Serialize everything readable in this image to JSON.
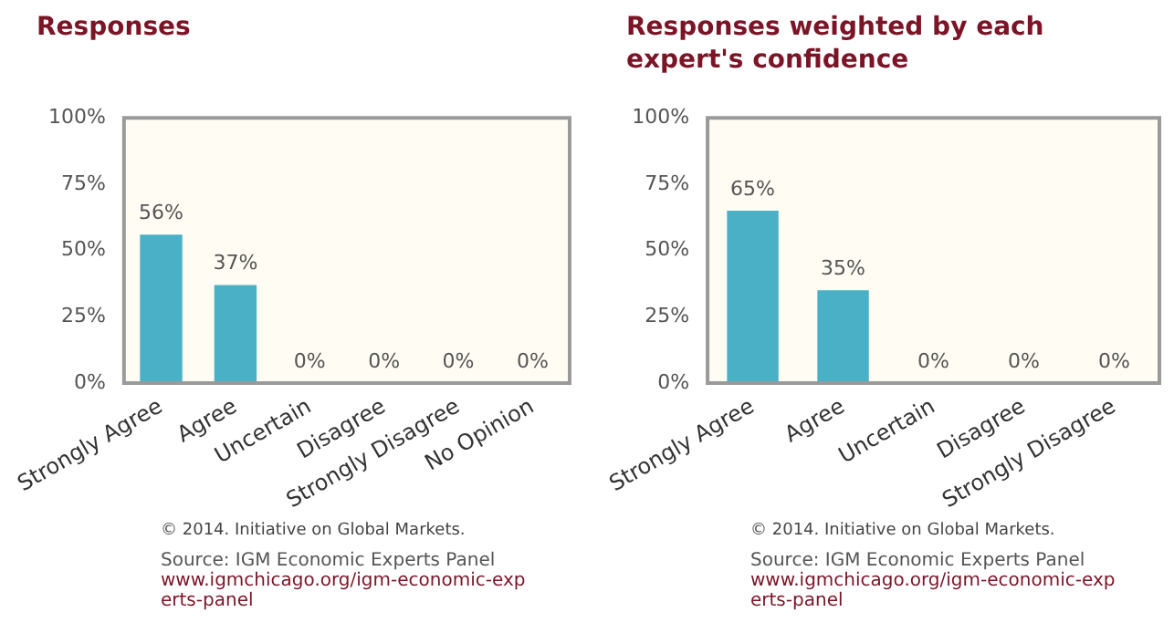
{
  "chart_data": [
    {
      "type": "bar",
      "title": "Responses",
      "categories": [
        "Strongly Agree",
        "Agree",
        "Uncertain",
        "Disagree",
        "Strongly Disagree",
        "No Opinion"
      ],
      "values": [
        56,
        37,
        0,
        0,
        0,
        0
      ],
      "value_labels": [
        "56%",
        "37%",
        "0%",
        "0%",
        "0%",
        "0%"
      ],
      "color": "#4ab0c6",
      "ylim": [
        0,
        100
      ],
      "yticks": [
        {
          "value": 0,
          "label": "0%"
        },
        {
          "value": 25,
          "label": "25%"
        },
        {
          "value": 50,
          "label": "50%"
        },
        {
          "value": 75,
          "label": "75%"
        },
        {
          "value": 100,
          "label": "100%"
        }
      ],
      "grid": false,
      "legend": false,
      "annotations": [
        "© 2014. Initiative on Global Markets.",
        "Source: IGM Economic Experts Panel",
        "www.igmchicago.org/igm-economic-experts-panel"
      ]
    },
    {
      "type": "bar",
      "title": "Responses weighted by each expert's confidence",
      "categories": [
        "Strongly Agree",
        "Agree",
        "Uncertain",
        "Disagree",
        "Strongly Disagree"
      ],
      "values": [
        65,
        35,
        0,
        0,
        0
      ],
      "value_labels": [
        "65%",
        "35%",
        "0%",
        "0%",
        "0%"
      ],
      "color": "#4ab0c6",
      "ylim": [
        0,
        100
      ],
      "yticks": [
        {
          "value": 0,
          "label": "0%"
        },
        {
          "value": 25,
          "label": "25%"
        },
        {
          "value": 50,
          "label": "50%"
        },
        {
          "value": 75,
          "label": "75%"
        },
        {
          "value": 100,
          "label": "100%"
        }
      ],
      "grid": false,
      "legend": false,
      "annotations": [
        "© 2014. Initiative on Global Markets.",
        "Source: IGM Economic Experts Panel",
        "www.igmchicago.org/igm-economic-experts-panel"
      ]
    }
  ]
}
